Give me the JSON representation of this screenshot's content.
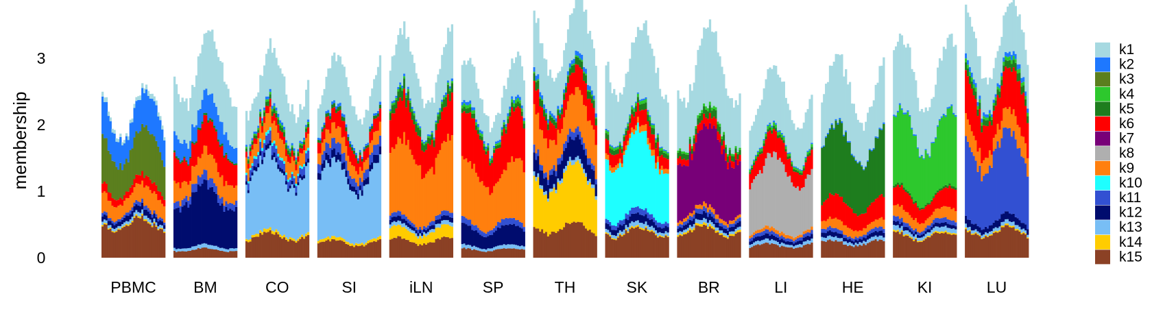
{
  "chart_data": {
    "type": "bar",
    "subtype": "stacked-structure",
    "ylabel": "membership",
    "ylim": [
      0,
      3.6
    ],
    "yticks": [
      0,
      1,
      2,
      3
    ],
    "legend_position": "right",
    "groups": [
      "PBMC",
      "BM",
      "CO",
      "SI",
      "iLN",
      "SP",
      "TH",
      "SK",
      "BR",
      "LI",
      "HE",
      "KI",
      "LU"
    ],
    "bars_per_group": 32,
    "series": [
      {
        "name": "k1",
        "color": "#A6D9E1"
      },
      {
        "name": "k2",
        "color": "#1E78FF"
      },
      {
        "name": "k3",
        "color": "#5B7F1E"
      },
      {
        "name": "k4",
        "color": "#2DC82D"
      },
      {
        "name": "k5",
        "color": "#1E7D1E"
      },
      {
        "name": "k6",
        "color": "#FF0000"
      },
      {
        "name": "k7",
        "color": "#780078"
      },
      {
        "name": "k8",
        "color": "#AFAFAF"
      },
      {
        "name": "k9",
        "color": "#FF7F0E"
      },
      {
        "name": "k10",
        "color": "#1EFFFF"
      },
      {
        "name": "k11",
        "color": "#3250D2"
      },
      {
        "name": "k12",
        "color": "#000C6E"
      },
      {
        "name": "k13",
        "color": "#78BEF5"
      },
      {
        "name": "k14",
        "color": "#FFCC00"
      },
      {
        "name": "k15",
        "color": "#8B4125"
      }
    ],
    "group_profiles": {
      "PBMC": {
        "k15": 0.5,
        "k14": 0.02,
        "k13": 0.05,
        "k12": 0.08,
        "k11": 0.05,
        "k9": 0.25,
        "k6": 0.12,
        "k3": 0.6,
        "k2": 0.45,
        "k1": 0.06
      },
      "BM": {
        "k15": 0.12,
        "k13": 0.05,
        "k12": 0.75,
        "k11": 0.12,
        "k9": 0.3,
        "k6": 0.4,
        "k5": 0.03,
        "k2": 0.3,
        "k1": 0.78
      },
      "CO": {
        "k15": 0.32,
        "k14": 0.04,
        "k13": 0.95,
        "k12": 0.06,
        "k11": 0.12,
        "k10": 0.04,
        "k9": 0.25,
        "k6": 0.1,
        "k5": 0.06,
        "k4": 0.03,
        "k2": 0.04,
        "k1": 0.64
      },
      "SI": {
        "k15": 0.22,
        "k14": 0.04,
        "k13": 0.95,
        "k12": 0.1,
        "k11": 0.14,
        "k9": 0.2,
        "k6": 0.2,
        "k5": 0.05,
        "k2": 0.04,
        "k1": 0.6
      },
      "iLN": {
        "k15": 0.25,
        "k14": 0.15,
        "k13": 0.05,
        "k12": 0.06,
        "k11": 0.06,
        "k9": 0.95,
        "k6": 0.5,
        "k5": 0.12,
        "k4": 0.03,
        "k2": 0.03,
        "k1": 0.65
      },
      "SP": {
        "k15": 0.12,
        "k13": 0.05,
        "k12": 0.25,
        "k11": 0.08,
        "k9": 0.75,
        "k6": 0.6,
        "k5": 0.06,
        "k4": 0.04,
        "k2": 0.04,
        "k1": 0.5
      },
      "TH": {
        "k15": 0.45,
        "k14": 0.75,
        "k13": 0.06,
        "k12": 0.25,
        "k11": 0.1,
        "k9": 0.5,
        "k6": 0.3,
        "k5": 0.1,
        "k4": 0.02,
        "k2": 0.06,
        "k1": 0.7
      },
      "SK": {
        "k15": 0.38,
        "k14": 0.02,
        "k13": 0.06,
        "k12": 0.1,
        "k11": 0.08,
        "k10": 1.0,
        "k9": 0.08,
        "k6": 0.2,
        "k5": 0.08,
        "k4": 0.04,
        "k2": 0.02,
        "k1": 0.92
      },
      "BR": {
        "k15": 0.4,
        "k14": 0.03,
        "k13": 0.05,
        "k12": 0.08,
        "k11": 0.06,
        "k9": 0.06,
        "k7": 1.05,
        "k6": 0.12,
        "k5": 0.1,
        "k4": 0.04,
        "k1": 0.95
      },
      "LI": {
        "k15": 0.18,
        "k13": 0.05,
        "k12": 0.06,
        "k11": 0.05,
        "k9": 0.05,
        "k8": 0.9,
        "k6": 0.28,
        "k5": 0.04,
        "k4": 0.04,
        "k2": 0.02,
        "k1": 0.72
      },
      "HE": {
        "k15": 0.22,
        "k13": 0.05,
        "k12": 0.06,
        "k11": 0.05,
        "k9": 0.12,
        "k6": 0.3,
        "k5": 0.9,
        "k2": 0.02,
        "k1": 0.8
      },
      "KI": {
        "k15": 0.32,
        "k14": 0.02,
        "k13": 0.06,
        "k12": 0.05,
        "k11": 0.06,
        "k9": 0.15,
        "k6": 0.25,
        "k5": 0.03,
        "k4": 0.95,
        "k2": 0.02,
        "k1": 0.85
      },
      "LU": {
        "k15": 0.38,
        "k14": 0.02,
        "k13": 0.05,
        "k12": 0.1,
        "k11": 1.05,
        "k9": 0.28,
        "k6": 0.55,
        "k5": 0.1,
        "k4": 0.05,
        "k2": 0.06,
        "k1": 0.62
      }
    }
  }
}
